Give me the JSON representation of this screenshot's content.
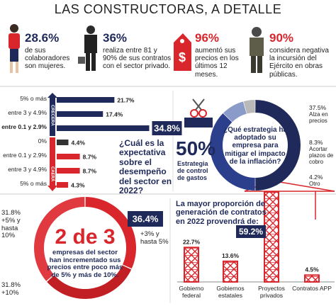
{
  "title": "LAS CONSTRUCTORAS, A DETALLE",
  "stats": [
    {
      "value": "28.6%",
      "text": "de sus colaboradores son mujeres."
    },
    {
      "value": "36%",
      "text": "realiza entre 81 y 90% de sus contratos con el sector privado."
    },
    {
      "value": "96%",
      "text": "aumentó sus precios en los últimos 12 meses."
    },
    {
      "value": "90%",
      "text": "considera negativa la incursión del Ejército en obras públicas."
    }
  ],
  "chart_data": [
    {
      "type": "hbar",
      "question": "¿Cuál es la expectativa sobre el desempeño del sector en 2022?",
      "axis_labels": [
        "CRECERÁ",
        "CAERÁ"
      ],
      "categories": [
        "5% o más",
        "entre 3 y 4.9%",
        "entre 0.1 y 2.9%",
        "0%",
        "entre 0.1 y 2.9%",
        "entre 3 y 4.9%",
        "5% o más"
      ],
      "values": [
        21.7,
        17.4,
        34.8,
        4.4,
        8.7,
        8.7,
        4.3
      ],
      "value_labels": [
        "21.7%",
        "17.4%",
        "34.8%",
        "4.4%",
        "8.7%",
        "8.7%",
        "4.3%"
      ],
      "colors": [
        "#1f2a5a",
        "#1f2a5a",
        "#1f2a5a",
        "#333333",
        "#d9262c",
        "#d9262c",
        "#d9262c"
      ],
      "xlim": [
        0,
        40
      ]
    },
    {
      "type": "donut",
      "question": "¿Qué estrategia ha adoptado su empresa para mitigar el impacto de la inflación?",
      "categories": [
        "Estrategia de control de gastos",
        "Alza en precios",
        "Acortar plazos de cobro",
        "Otro"
      ],
      "values": [
        50,
        37.5,
        8.3,
        4.2
      ],
      "value_labels": [
        "50%",
        "37.5%",
        "8.3%",
        "4.2%"
      ],
      "colors": [
        "#1f2a5a",
        "#2b3f8c",
        "#8a9bc9",
        "#b9b9b9"
      ]
    },
    {
      "type": "ring",
      "highlight": "2 de 3",
      "text": "empresas del sector han incrementado sus precios entre poco más de 5% y más de 10%.",
      "categories": [
        "+5% y hasta 10%",
        "+10%",
        "+3% y hasta 5%"
      ],
      "values": [
        31.8,
        31.8,
        36.4
      ],
      "value_labels": [
        "31.8%",
        "31.8%",
        "36.4%"
      ],
      "colors": [
        "#d9262c",
        "#c21f25",
        "#e0393f"
      ]
    },
    {
      "type": "bar",
      "title": "La mayor proporción de generación de contratos en 2022 provendrá de:",
      "categories": [
        "Gobierno federal",
        "Gobiernos estatales",
        "Proyectos privados",
        "Contratos APP"
      ],
      "values": [
        22.7,
        13.6,
        59.2,
        4.5
      ],
      "value_labels": [
        "22.7%",
        "13.6%",
        "59.2%",
        "4.5%"
      ],
      "color": "#d9262c",
      "ylim": [
        0,
        70
      ]
    }
  ]
}
